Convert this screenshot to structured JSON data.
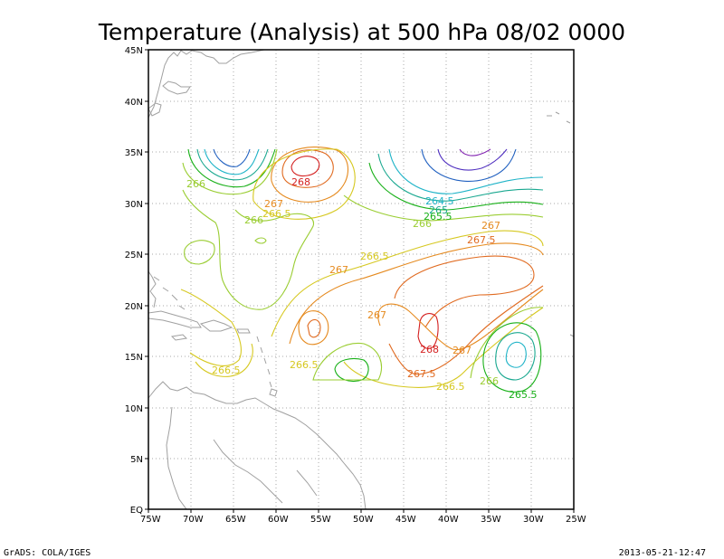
{
  "title": "Temperature (Analysis) at 500 hPa 08/02 0000",
  "footer_left": "GrADS: COLA/IGES",
  "footer_right": "2013-05-21-12:47",
  "x_ticks": [
    "75W",
    "70W",
    "65W",
    "60W",
    "55W",
    "50W",
    "45W",
    "40W",
    "35W",
    "30W",
    "25W"
  ],
  "y_ticks": [
    "EQ",
    "5N",
    "10N",
    "15N",
    "20N",
    "25N",
    "30N",
    "35N",
    "40N",
    "45N"
  ],
  "contour_labels": [
    {
      "id": "l1",
      "text": "266",
      "color": "#9acd32"
    },
    {
      "id": "l2",
      "text": "268",
      "color": "#d42020"
    },
    {
      "id": "l3",
      "text": "267",
      "color": "#e58a1f"
    },
    {
      "id": "l4",
      "text": "266.5",
      "color": "#d6c820"
    },
    {
      "id": "l5",
      "text": "266",
      "color": "#9acd32"
    },
    {
      "id": "l6",
      "text": "264.5",
      "color": "#20b4c8"
    },
    {
      "id": "l7",
      "text": "265",
      "color": "#1aa890"
    },
    {
      "id": "l8",
      "text": "265.5",
      "color": "#18b018"
    },
    {
      "id": "l9",
      "text": "266",
      "color": "#9acd32"
    },
    {
      "id": "l10",
      "text": "267",
      "color": "#e58a1f"
    },
    {
      "id": "l11",
      "text": "267.5",
      "color": "#e06a20"
    },
    {
      "id": "l12",
      "text": "266.5",
      "color": "#d6c820"
    },
    {
      "id": "l13",
      "text": "267",
      "color": "#e58a1f"
    },
    {
      "id": "l14",
      "text": "267",
      "color": "#e58a1f"
    },
    {
      "id": "l15",
      "text": "268",
      "color": "#d42020"
    },
    {
      "id": "l16",
      "text": "267",
      "color": "#e58a1f"
    },
    {
      "id": "l17",
      "text": "266.5",
      "color": "#d6c820"
    },
    {
      "id": "l18",
      "text": "266.5",
      "color": "#d6c820"
    },
    {
      "id": "l19",
      "text": "267.5",
      "color": "#e06a20"
    },
    {
      "id": "l20",
      "text": "266.5",
      "color": "#d6c820"
    },
    {
      "id": "l21",
      "text": "266",
      "color": "#9acd32"
    },
    {
      "id": "l22",
      "text": "265.5",
      "color": "#18b018"
    }
  ],
  "colors": {
    "frame": "#000000",
    "coastline": "#a0a0a0",
    "gridline": "#a8a8a8"
  }
}
